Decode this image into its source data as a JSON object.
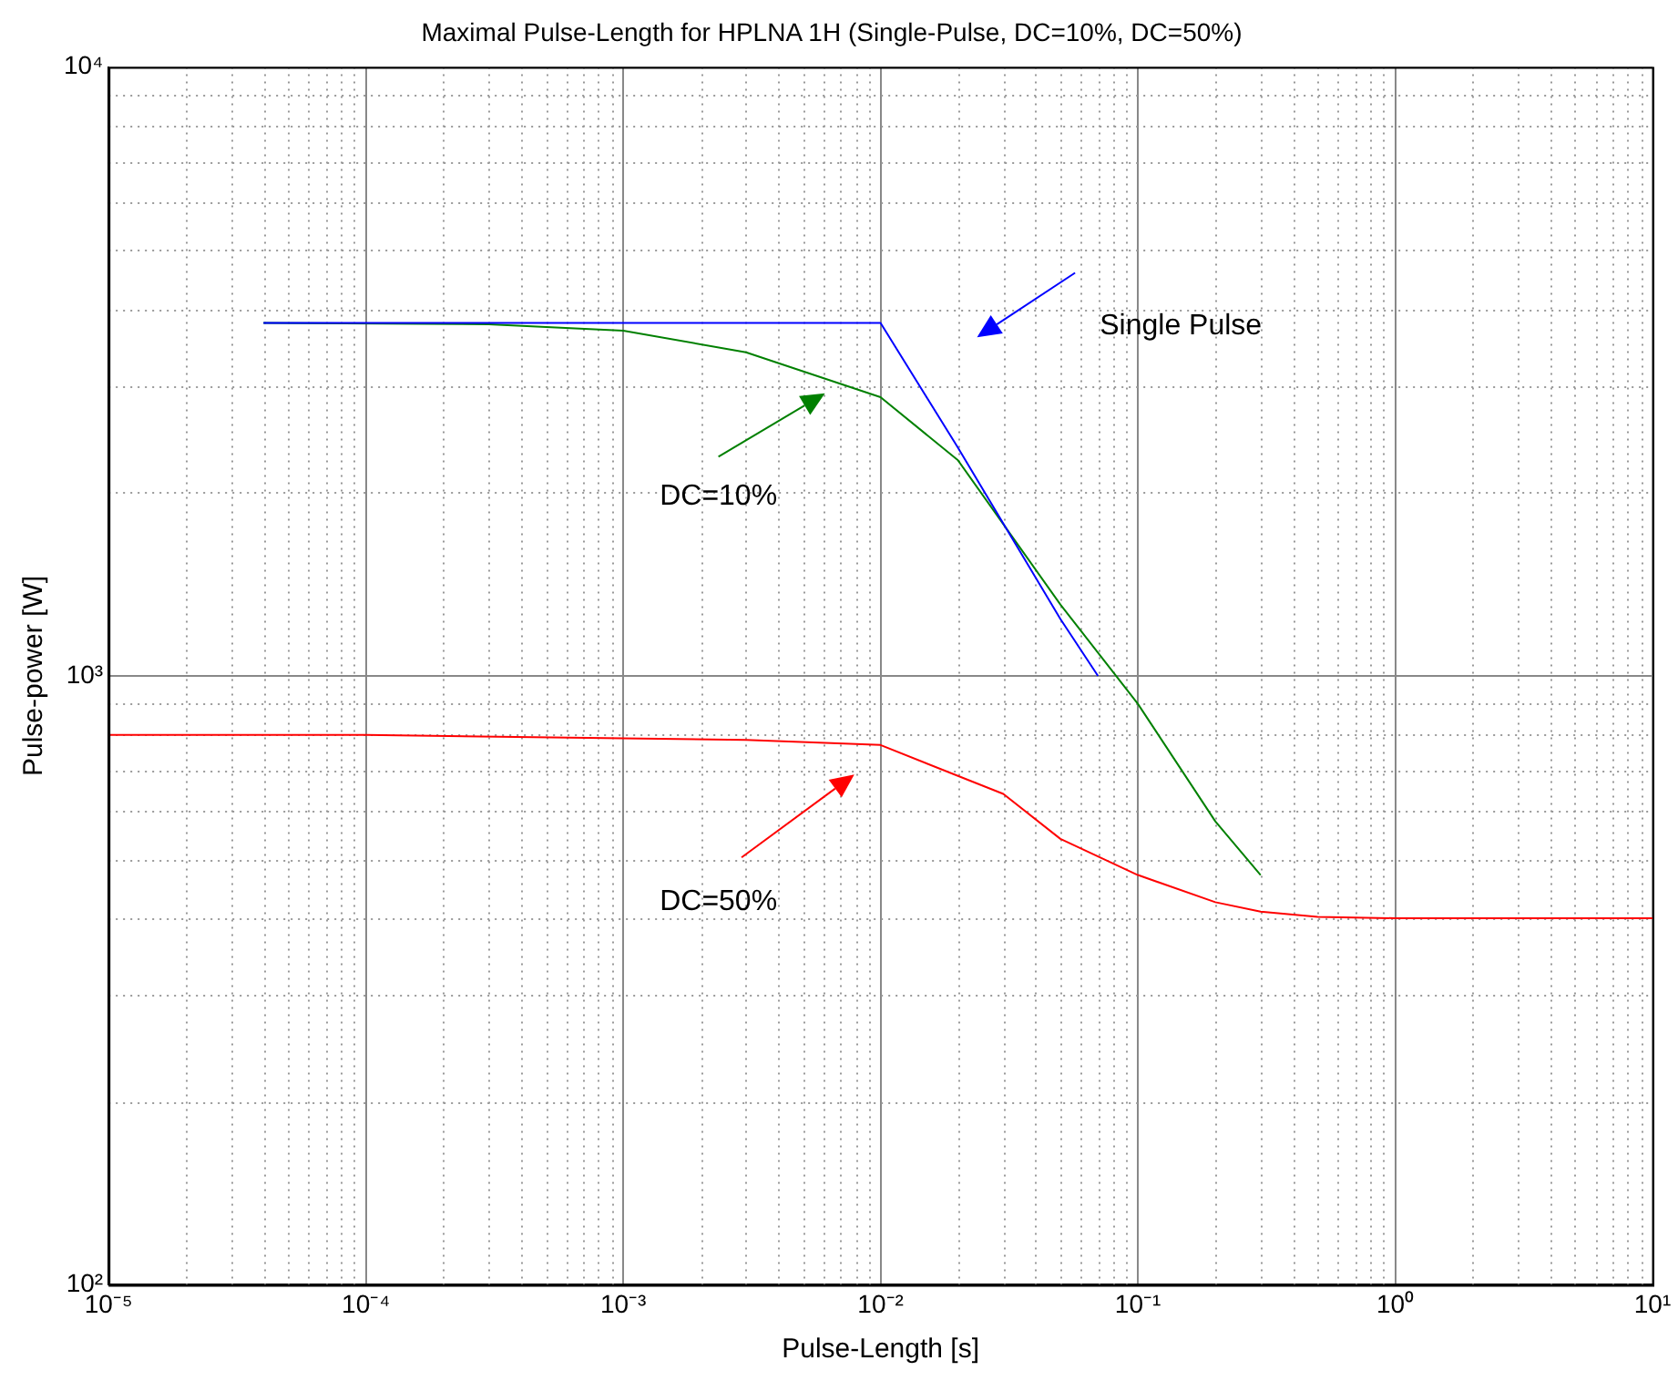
{
  "chart_data": {
    "type": "line",
    "title": "Maximal Pulse-Length for HPLNA 1H (Single-Pulse, DC=10%, DC=50%)",
    "xlabel": "Pulse-Length [s]",
    "ylabel": "Pulse-power [W]",
    "log": "xy",
    "grid": true,
    "legend": false,
    "marker": "none",
    "line_style": "solid",
    "xlim": [
      1e-05,
      10
    ],
    "ylim": [
      100,
      10000
    ],
    "xticks": [
      {
        "value": 1e-05,
        "label": "10⁻⁵"
      },
      {
        "value": 0.0001,
        "label": "10⁻⁴"
      },
      {
        "value": 0.001,
        "label": "10⁻³"
      },
      {
        "value": 0.01,
        "label": "10⁻²"
      },
      {
        "value": 0.1,
        "label": "10⁻¹"
      },
      {
        "value": 1,
        "label": "10⁰"
      },
      {
        "value": 10,
        "label": "10¹"
      }
    ],
    "yticks": [
      {
        "value": 100,
        "label": "10²"
      },
      {
        "value": 1000,
        "label": "10³"
      },
      {
        "value": 10000,
        "label": "10⁴"
      }
    ],
    "series": [
      {
        "color": "#0000ff",
        "x": [
          4e-05,
          0.001,
          0.01,
          0.02,
          0.05,
          0.07
        ],
        "values": [
          3800,
          3800,
          3800,
          2370,
          1240,
          1000
        ]
      },
      {
        "color": "#008000",
        "x": [
          4e-05,
          0.0003,
          0.001,
          0.003,
          0.01,
          0.02,
          0.05,
          0.1,
          0.2,
          0.3
        ],
        "values": [
          3800,
          3780,
          3690,
          3400,
          2870,
          2260,
          1310,
          900,
          577,
          471
        ]
      },
      {
        "color": "#ff0000",
        "x": [
          1e-05,
          0.0001,
          0.001,
          0.003,
          0.01,
          0.03,
          0.05,
          0.1,
          0.2,
          0.3,
          0.5,
          1,
          10
        ],
        "values": [
          800,
          800,
          790,
          785,
          770,
          640,
          540,
          471,
          425,
          410,
          402,
          400,
          400
        ]
      }
    ],
    "annotations": [
      "Single Pulse",
      "DC=10%",
      "DC=50%"
    ]
  }
}
